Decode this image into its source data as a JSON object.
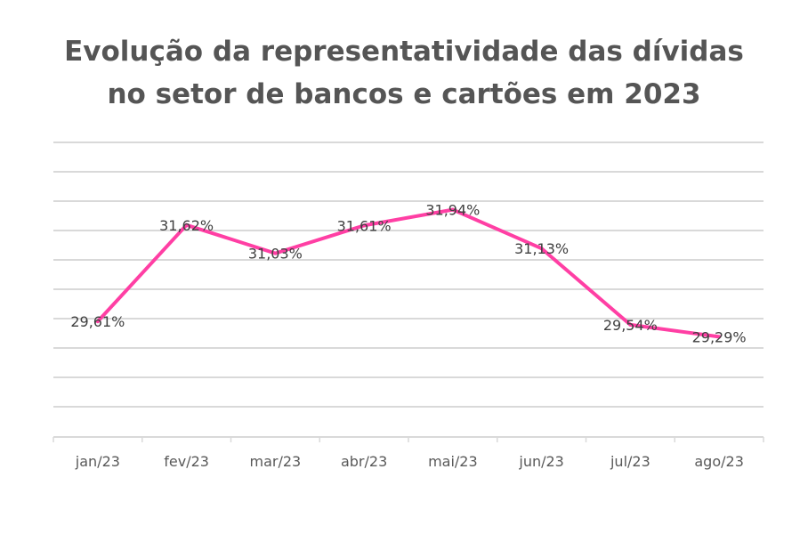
{
  "chart_data": {
    "type": "line",
    "title_lines": [
      "Evolução da representatividade das dívidas",
      "no setor de bancos e cartões em 2023"
    ],
    "categories": [
      "jan/23",
      "fev/23",
      "mar/23",
      "abr/23",
      "mai/23",
      "jun/23",
      "jul/23",
      "ago/23"
    ],
    "series": [
      {
        "values": [
          29.61,
          31.62,
          31.03,
          31.61,
          31.94,
          31.13,
          29.54,
          29.29
        ],
        "labels": [
          "29,61%",
          "31,62%",
          "31,03%",
          "31,61%",
          "31,94%",
          "31,13%",
          "29,54%",
          "29,29%"
        ],
        "color": "#ff3fa4"
      }
    ],
    "ylim": [
      27.2,
      32.6
    ],
    "grid": true,
    "legend": "none"
  }
}
